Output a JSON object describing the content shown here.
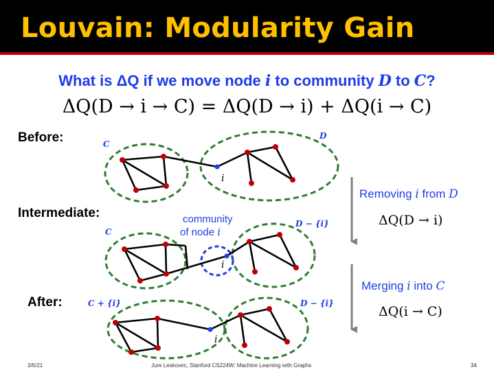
{
  "slide": {
    "title": "Louvain: Modularity Gain",
    "question_prefix": "What is ",
    "question_delta": "ΔQ",
    "question_mid1": " if we move node ",
    "question_node": "i",
    "question_mid2": " to community ",
    "question_from": "D",
    "question_mid3": " to ",
    "question_to": "C",
    "question_suffix": "?",
    "equation": "ΔQ(D → i → C) = ΔQ(D → i) + ΔQ(i → C)"
  },
  "stages": {
    "before": {
      "label": "Before:",
      "left_community": "C",
      "right_community": "D",
      "node_label": "i"
    },
    "intermediate": {
      "label": "Intermediate:",
      "left_community": "C",
      "right_community": "D − {i}",
      "annotation_line1": "community",
      "annotation_line2_text": "of node ",
      "annotation_line2_var": "i",
      "node_label": "i"
    },
    "after": {
      "label": "After:",
      "left_community": "C + {i}",
      "right_community": "D − {i}",
      "node_label": "i"
    }
  },
  "steps": [
    {
      "text": "Removing ",
      "var": "i",
      "suffix": " from ",
      "target": "D",
      "formula": "ΔQ(D → i)"
    },
    {
      "text": "Merging ",
      "var": "i",
      "suffix": " into ",
      "target": "C",
      "formula": "ΔQ(i → C)"
    }
  ],
  "footer": {
    "date": "3/6/21",
    "credit": "Jure Leskovec, Stanford CS224W: Machine Learning with Graphs",
    "page": "34"
  },
  "colors": {
    "title_background": "#000000",
    "title_text": "#ffc000",
    "title_rule": "#c00000",
    "accent_blue": "#1f3ce6",
    "community_outline": "#2e7d32",
    "node_red": "#c00000",
    "node_i": "#1f3ce6",
    "arrow": "#808080"
  }
}
